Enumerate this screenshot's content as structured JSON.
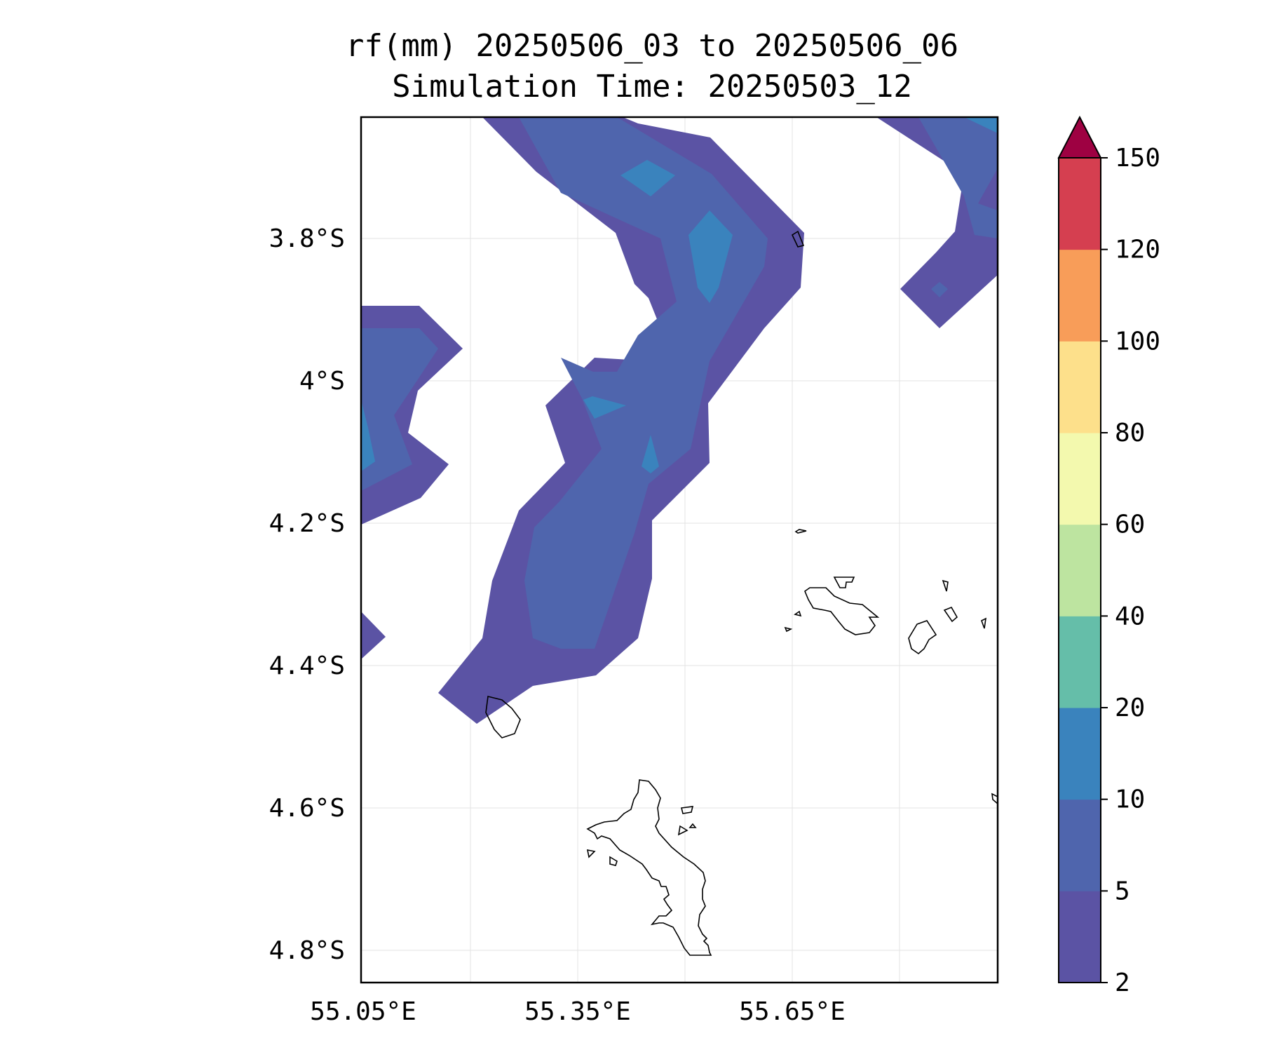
{
  "title": {
    "line1": "rf(mm) 20250506_03 to 20250506_06",
    "line2": "Simulation Time: 20250503_12"
  },
  "map": {
    "lat_ticks": [
      "3.8°S",
      "4°S",
      "4.2°S",
      "4.4°S",
      "4.6°S",
      "4.8°S"
    ],
    "lon_ticks": [
      "55.05°E",
      "55.35°E",
      "55.65°E"
    ]
  },
  "colorbar": {
    "unit": "mm",
    "extend": "max",
    "levels": [
      "2",
      "5",
      "10",
      "20",
      "40",
      "60",
      "80",
      "100",
      "120",
      "150"
    ],
    "colors": [
      "#5b53a4",
      "#4f65ad",
      "#3a83bd",
      "#65bea9",
      "#bde4a0",
      "#f3f9ae",
      "#fde08b",
      "#f89d59",
      "#d53f50",
      "#9e0142"
    ]
  },
  "colors": {
    "rain_2_5": "#5b53a4",
    "rain_5_10": "#4f65ad",
    "rain_10_20": "#3a83bd"
  }
}
